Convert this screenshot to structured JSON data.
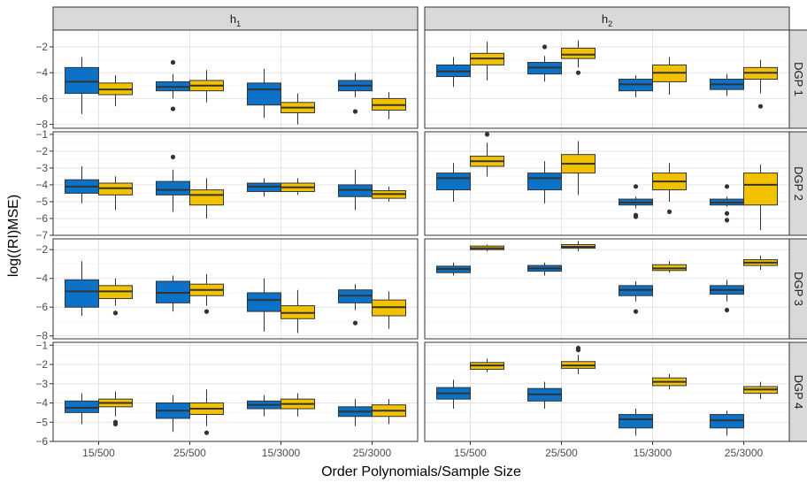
{
  "chart_data": {
    "type": "boxplot",
    "xlabel": "Order Polynomials/Sample Size",
    "ylabel": "log((RI)MSE)",
    "categories": [
      "15/500",
      "25/500",
      "15/3000",
      "25/3000"
    ],
    "columns": [
      {
        "label": "h",
        "sub": "1"
      },
      {
        "label": "h",
        "sub": "2"
      }
    ],
    "series_colors": [
      "#0b72c7",
      "#f2c200"
    ],
    "grid": true,
    "rows": [
      {
        "label": "DGP 1",
        "ylim": [
          -8.3,
          -0.7
        ],
        "yticks": [
          -2,
          -4,
          -6,
          -8
        ],
        "panels": [
          [
            [
              {
                "lw": -7.2,
                "q1": -5.6,
                "med": -4.7,
                "q3": -3.6,
                "uw": -2.8,
                "out": []
              },
              {
                "lw": -6.6,
                "q1": -5.7,
                "med": -5.3,
                "q3": -4.8,
                "uw": -4.2,
                "out": []
              }
            ],
            [
              {
                "lw": -6.0,
                "q1": -5.4,
                "med": -5.1,
                "q3": -4.7,
                "uw": -4.1,
                "out": [
                  -3.2,
                  -6.8
                ]
              },
              {
                "lw": -6.3,
                "q1": -5.4,
                "med": -5.0,
                "q3": -4.6,
                "uw": -3.8,
                "out": []
              }
            ],
            [
              {
                "lw": -7.5,
                "q1": -6.5,
                "med": -5.3,
                "q3": -4.8,
                "uw": -3.7,
                "out": []
              },
              {
                "lw": -8.0,
                "q1": -7.1,
                "med": -6.7,
                "q3": -6.3,
                "uw": -5.6,
                "out": []
              }
            ],
            [
              {
                "lw": -5.9,
                "q1": -5.4,
                "med": -5.0,
                "q3": -4.6,
                "uw": -4.0,
                "out": [
                  -7.0
                ]
              },
              {
                "lw": -7.6,
                "q1": -6.9,
                "med": -6.5,
                "q3": -6.0,
                "uw": -5.5,
                "out": []
              }
            ]
          ],
          [
            [
              {
                "lw": -5.1,
                "q1": -4.3,
                "med": -3.9,
                "q3": -3.4,
                "uw": -2.8,
                "out": []
              },
              {
                "lw": -4.6,
                "q1": -3.4,
                "med": -2.9,
                "q3": -2.5,
                "uw": -1.6,
                "out": []
              }
            ],
            [
              {
                "lw": -4.7,
                "q1": -4.1,
                "med": -3.6,
                "q3": -3.2,
                "uw": -2.7,
                "out": [
                  -2.0
                ]
              },
              {
                "lw": -3.6,
                "q1": -2.9,
                "med": -2.6,
                "q3": -2.1,
                "uw": -1.5,
                "out": [
                  -4.0
                ]
              }
            ],
            [
              {
                "lw": -5.9,
                "q1": -5.4,
                "med": -4.9,
                "q3": -4.5,
                "uw": -4.2,
                "out": []
              },
              {
                "lw": -5.7,
                "q1": -4.7,
                "med": -4.0,
                "q3": -3.4,
                "uw": -2.8,
                "out": []
              }
            ],
            [
              {
                "lw": -5.8,
                "q1": -5.3,
                "med": -4.9,
                "q3": -4.5,
                "uw": -4.1,
                "out": []
              },
              {
                "lw": -5.6,
                "q1": -4.5,
                "med": -4.0,
                "q3": -3.6,
                "uw": -3.0,
                "out": [
                  -6.6
                ]
              }
            ]
          ]
        ]
      },
      {
        "label": "DGP 2",
        "ylim": [
          -7.0,
          -0.85
        ],
        "yticks": [
          -1,
          -2,
          -3,
          -4,
          -5,
          -6,
          -7
        ],
        "panels": [
          [
            [
              {
                "lw": -5.1,
                "q1": -4.5,
                "med": -4.1,
                "q3": -3.7,
                "uw": -2.9,
                "out": []
              },
              {
                "lw": -5.5,
                "q1": -4.6,
                "med": -4.2,
                "q3": -3.9,
                "uw": -3.5,
                "out": []
              }
            ],
            [
              {
                "lw": -5.6,
                "q1": -4.6,
                "med": -4.3,
                "q3": -3.8,
                "uw": -3.1,
                "out": [
                  -2.35
                ]
              },
              {
                "lw": -6.0,
                "q1": -5.2,
                "med": -4.6,
                "q3": -4.3,
                "uw": -3.6,
                "out": []
              }
            ],
            [
              {
                "lw": -4.7,
                "q1": -4.4,
                "med": -4.1,
                "q3": -3.9,
                "uw": -3.6,
                "out": []
              },
              {
                "lw": -4.6,
                "q1": -4.4,
                "med": -4.15,
                "q3": -3.9,
                "uw": -3.6,
                "out": []
              }
            ],
            [
              {
                "lw": -5.5,
                "q1": -4.7,
                "med": -4.3,
                "q3": -4.0,
                "uw": -3.1,
                "out": []
              },
              {
                "lw": -5.0,
                "q1": -4.8,
                "med": -4.55,
                "q3": -4.35,
                "uw": -4.1,
                "out": []
              }
            ]
          ],
          [
            [
              {
                "lw": -5.0,
                "q1": -4.3,
                "med": -3.6,
                "q3": -3.3,
                "uw": -2.7,
                "out": []
              },
              {
                "lw": -3.5,
                "q1": -2.9,
                "med": -2.6,
                "q3": -2.3,
                "uw": -1.5,
                "out": [
                  -1.0
                ]
              }
            ],
            [
              {
                "lw": -5.1,
                "q1": -4.3,
                "med": -3.6,
                "q3": -3.3,
                "uw": -2.6,
                "out": []
              },
              {
                "lw": -4.6,
                "q1": -3.3,
                "med": -2.75,
                "q3": -2.2,
                "uw": -1.4,
                "out": []
              }
            ],
            [
              {
                "lw": -5.4,
                "q1": -5.2,
                "med": -5.05,
                "q3": -4.85,
                "uw": -4.7,
                "out": [
                  -4.1,
                  -5.8,
                  -5.9
                ]
              },
              {
                "lw": -5.0,
                "q1": -4.3,
                "med": -3.8,
                "q3": -3.3,
                "uw": -2.7,
                "out": [
                  -5.6
                ]
              }
            ],
            [
              {
                "lw": -5.3,
                "q1": -5.2,
                "med": -5.05,
                "q3": -4.85,
                "uw": -4.7,
                "out": [
                  -4.1,
                  -5.7,
                  -6.1
                ]
              },
              {
                "lw": -6.7,
                "q1": -5.2,
                "med": -4.0,
                "q3": -3.3,
                "uw": -2.8,
                "out": []
              }
            ]
          ]
        ]
      },
      {
        "label": "DGP 3",
        "ylim": [
          -8.2,
          -1.25
        ],
        "yticks": [
          -2,
          -4,
          -6,
          -8
        ],
        "panels": [
          [
            [
              {
                "lw": -6.6,
                "q1": -6.0,
                "med": -4.9,
                "q3": -4.1,
                "uw": -2.8,
                "out": []
              },
              {
                "lw": -5.9,
                "q1": -5.4,
                "med": -4.9,
                "q3": -4.5,
                "uw": -4.0,
                "out": [
                  -6.4
                ]
              }
            ],
            [
              {
                "lw": -6.3,
                "q1": -5.7,
                "med": -5.0,
                "q3": -4.2,
                "uw": -3.8,
                "out": []
              },
              {
                "lw": -5.9,
                "q1": -5.2,
                "med": -4.8,
                "q3": -4.4,
                "uw": -3.7,
                "out": [
                  -6.3
                ]
              }
            ],
            [
              {
                "lw": -7.7,
                "q1": -6.3,
                "med": -5.5,
                "q3": -5.0,
                "uw": -4.0,
                "out": []
              },
              {
                "lw": -7.8,
                "q1": -6.8,
                "med": -6.4,
                "q3": -5.9,
                "uw": -4.8,
                "out": []
              }
            ],
            [
              {
                "lw": -6.2,
                "q1": -5.7,
                "med": -5.2,
                "q3": -4.8,
                "uw": -4.4,
                "out": [
                  -7.1
                ]
              },
              {
                "lw": -7.5,
                "q1": -6.6,
                "med": -6.0,
                "q3": -5.5,
                "uw": -4.9,
                "out": []
              }
            ]
          ],
          [
            [
              {
                "lw": -3.8,
                "q1": -3.6,
                "med": -3.35,
                "q3": -3.15,
                "uw": -2.9,
                "out": []
              },
              {
                "lw": -2.1,
                "q1": -2.0,
                "med": -1.9,
                "q3": -1.75,
                "uw": -1.65,
                "out": []
              }
            ],
            [
              {
                "lw": -3.8,
                "q1": -3.5,
                "med": -3.3,
                "q3": -3.1,
                "uw": -2.9,
                "out": []
              },
              {
                "lw": -2.1,
                "q1": -1.9,
                "med": -1.8,
                "q3": -1.65,
                "uw": -1.4,
                "out": []
              }
            ],
            [
              {
                "lw": -5.6,
                "q1": -5.2,
                "med": -4.8,
                "q3": -4.5,
                "uw": -4.2,
                "out": [
                  -6.3
                ]
              },
              {
                "lw": -3.6,
                "q1": -3.45,
                "med": -3.3,
                "q3": -3.05,
                "uw": -2.8,
                "out": []
              }
            ],
            [
              {
                "lw": -5.6,
                "q1": -5.1,
                "med": -4.8,
                "q3": -4.5,
                "uw": -4.1,
                "out": [
                  -6.2
                ]
              },
              {
                "lw": -3.4,
                "q1": -3.1,
                "med": -2.9,
                "q3": -2.7,
                "uw": -2.4,
                "out": []
              }
            ]
          ]
        ]
      },
      {
        "label": "DGP 4",
        "ylim": [
          -6.0,
          -0.85
        ],
        "yticks": [
          -1,
          -2,
          -3,
          -4,
          -5,
          -6
        ],
        "panels": [
          [
            [
              {
                "lw": -5.1,
                "q1": -4.5,
                "med": -4.25,
                "q3": -3.9,
                "uw": -3.5,
                "out": []
              },
              {
                "lw": -4.7,
                "q1": -4.2,
                "med": -4.0,
                "q3": -3.8,
                "uw": -3.4,
                "out": [
                  -5.0,
                  -5.1
                ]
              }
            ],
            [
              {
                "lw": -5.5,
                "q1": -4.8,
                "med": -4.4,
                "q3": -4.0,
                "uw": -3.6,
                "out": []
              },
              {
                "lw": -5.2,
                "q1": -4.6,
                "med": -4.3,
                "q3": -4.0,
                "uw": -3.3,
                "out": [
                  -5.55
                ]
              }
            ],
            [
              {
                "lw": -4.7,
                "q1": -4.3,
                "med": -4.1,
                "q3": -3.9,
                "uw": -3.6,
                "out": []
              },
              {
                "lw": -4.7,
                "q1": -4.3,
                "med": -4.05,
                "q3": -3.8,
                "uw": -3.5,
                "out": []
              }
            ],
            [
              {
                "lw": -5.2,
                "q1": -4.7,
                "med": -4.45,
                "q3": -4.2,
                "uw": -3.8,
                "out": []
              },
              {
                "lw": -5.1,
                "q1": -4.7,
                "med": -4.4,
                "q3": -4.1,
                "uw": -3.8,
                "out": []
              }
            ]
          ],
          [
            [
              {
                "lw": -4.3,
                "q1": -3.8,
                "med": -3.5,
                "q3": -3.2,
                "uw": -2.8,
                "out": []
              },
              {
                "lw": -2.4,
                "q1": -2.25,
                "med": -2.05,
                "q3": -1.9,
                "uw": -1.7,
                "out": []
              }
            ],
            [
              {
                "lw": -4.3,
                "q1": -3.9,
                "med": -3.55,
                "q3": -3.25,
                "uw": -2.9,
                "out": []
              },
              {
                "lw": -2.5,
                "q1": -2.2,
                "med": -2.05,
                "q3": -1.85,
                "uw": -1.5,
                "out": [
                  -1.15,
                  -1.25
                ]
              }
            ],
            [
              {
                "lw": -5.7,
                "q1": -5.3,
                "med": -4.85,
                "q3": -4.6,
                "uw": -4.3,
                "out": []
              },
              {
                "lw": -3.3,
                "q1": -3.1,
                "med": -2.9,
                "q3": -2.7,
                "uw": -2.5,
                "out": []
              }
            ],
            [
              {
                "lw": -5.7,
                "q1": -5.3,
                "med": -4.9,
                "q3": -4.6,
                "uw": -4.4,
                "out": []
              },
              {
                "lw": -3.8,
                "q1": -3.5,
                "med": -3.3,
                "q3": -3.15,
                "uw": -2.9,
                "out": []
              }
            ]
          ]
        ]
      }
    ]
  }
}
